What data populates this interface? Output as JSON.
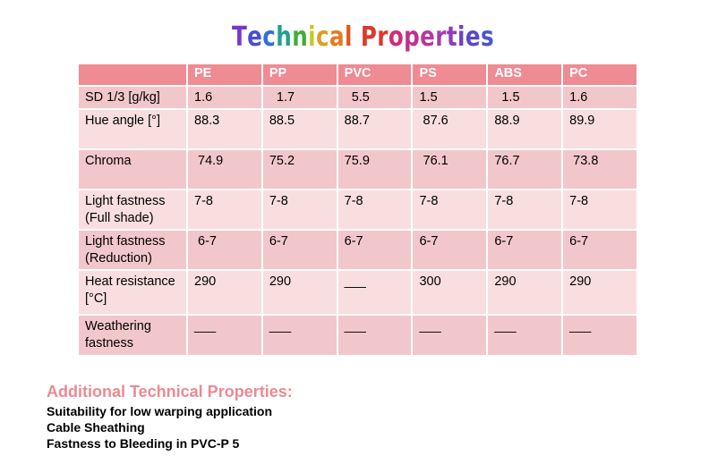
{
  "title": {
    "letters": [
      "T",
      "e",
      "c",
      "h",
      "n",
      "i",
      "c",
      "a",
      "l",
      " ",
      "P",
      "r",
      "o",
      "p",
      "e",
      "r",
      "t",
      "i",
      "e",
      "s"
    ],
    "colors": [
      "#7b35c6",
      "#4b4dd0",
      "#2f6fd6",
      "#21a18e",
      "#3fae3a",
      "#c6c72a",
      "#d8a021",
      "#e47a1c",
      "#e0561d",
      "#ffffff",
      "#d93a2a",
      "#e0352f",
      "#d32b7a",
      "#c0308c",
      "#b53a9c",
      "#a33eac",
      "#8e3cb8",
      "#7040c0",
      "#5a48c8",
      "#4a55cc"
    ]
  },
  "table": {
    "columns": [
      "",
      "PE",
      "PP",
      "PVC",
      "PS",
      "ABS",
      "PC"
    ],
    "rows": [
      {
        "label": "SD 1/3 [g/kg]",
        "values": [
          "1.6",
          "  1.7",
          "  5.5",
          "1.5",
          "  1.5",
          "1.6"
        ]
      },
      {
        "label": "Hue angle [°]",
        "values": [
          "88.3",
          "88.5",
          "88.7",
          " 87.6",
          "88.9",
          "89.9"
        ]
      },
      {
        "label": "Chroma",
        "values": [
          " 74.9",
          "75.2",
          "75.9",
          " 76.1",
          "76.7",
          " 73.8"
        ]
      },
      {
        "label": "Light fastness (Full shade)",
        "values": [
          "7-8",
          "7-8",
          "7-8",
          "7-8",
          "7-8",
          "7-8"
        ]
      },
      {
        "label": "Light fastness (Reduction)",
        "values": [
          " 6-7",
          "6-7",
          "6-7",
          "6-7",
          "6-7",
          "6-7"
        ]
      },
      {
        "label": "Heat resistance [°C]",
        "values": [
          "290",
          "290",
          "___",
          "300",
          "290",
          "290"
        ]
      },
      {
        "label": "Weathering fastness",
        "values": [
          "___",
          "___",
          "___",
          "___",
          "___",
          "___"
        ]
      }
    ]
  },
  "additional": {
    "title": "Additional Technical Properties:",
    "items": [
      "Suitability for low warping application",
      "Cable Sheathing",
      "Fastness to Bleeding in PVC-P   5"
    ]
  }
}
